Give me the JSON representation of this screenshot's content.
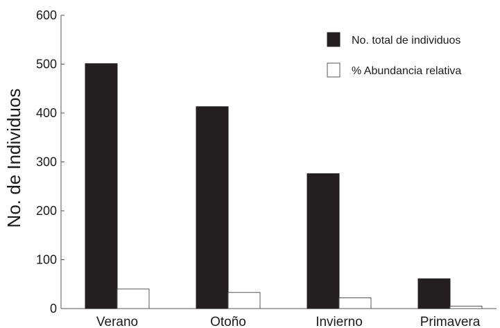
{
  "chart_data": {
    "type": "bar",
    "title": "",
    "xlabel": "",
    "ylabel": "No. de Individuos",
    "categories": [
      "Verano",
      "Otoño",
      "Invierno",
      "Primavera"
    ],
    "series": [
      {
        "name": "No. total de individuos",
        "values": [
          501,
          413,
          276,
          61
        ],
        "color": "#231f20"
      },
      {
        "name": "% Abundancia relativa",
        "values": [
          40,
          33,
          22,
          5
        ],
        "color": "#ffffff"
      }
    ],
    "ylim": [
      0,
      600
    ],
    "yticks": [
      0,
      100,
      200,
      300,
      400,
      500,
      600
    ],
    "grid": false,
    "legend": "top-right"
  }
}
